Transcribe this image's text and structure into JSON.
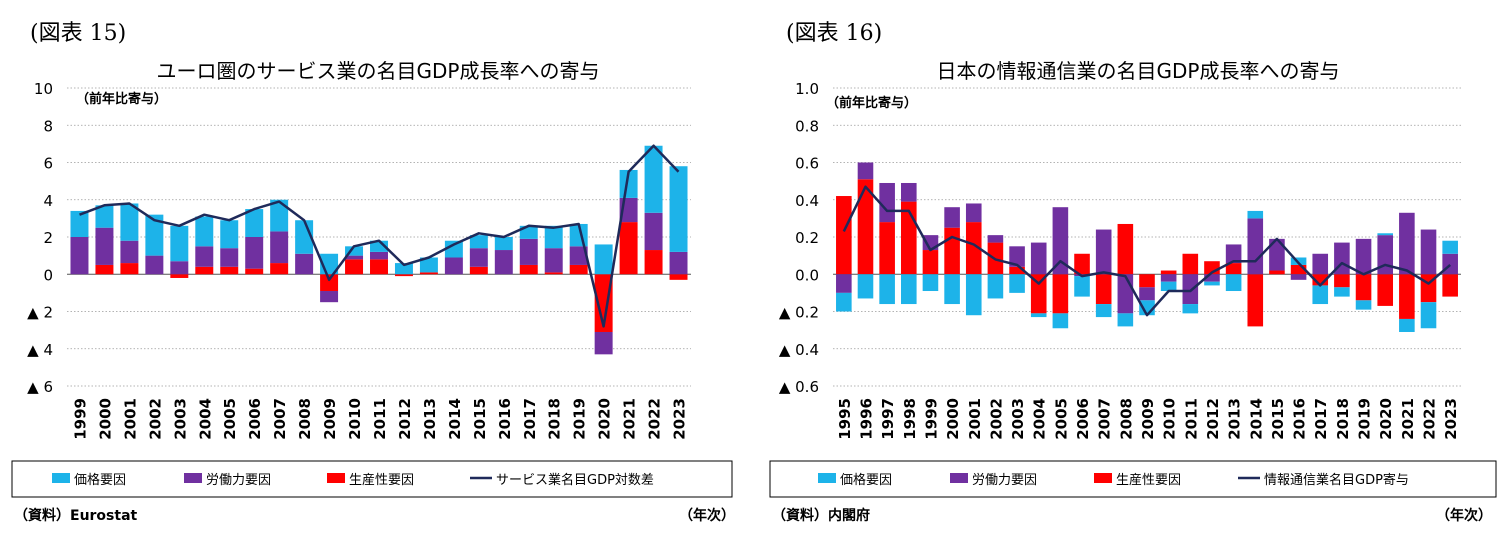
{
  "colors": {
    "price": "#1DB3E9",
    "labor": "#7030A0",
    "productivity": "#FF0000",
    "line": "#1F2A5A",
    "grid": "#9a9a9a"
  },
  "chart_data": [
    {
      "type": "bar",
      "stacked": true,
      "figure_label": "(図表 15)",
      "title": "ユーロ圏のサービス業の名目GDP成長率への寄与",
      "unit_label": "（前年比寄与）",
      "ylim": [
        -6,
        10
      ],
      "y_ticks": [
        10,
        8,
        6,
        4,
        2,
        0,
        -2,
        -4,
        -6
      ],
      "y_tick_labels": [
        "10",
        "8",
        "6",
        "4",
        "2",
        "0",
        "▲ 2",
        "▲ 4",
        "▲ 6"
      ],
      "categories": [
        "1999",
        "2000",
        "2001",
        "2002",
        "2003",
        "2004",
        "2005",
        "2006",
        "2007",
        "2008",
        "2009",
        "2010",
        "2011",
        "2012",
        "2013",
        "2014",
        "2015",
        "2016",
        "2017",
        "2018",
        "2019",
        "2020",
        "2021",
        "2022",
        "2023"
      ],
      "series": [
        {
          "name": "生産性要因",
          "values": [
            0.0,
            0.5,
            0.6,
            0.0,
            -0.2,
            0.4,
            0.4,
            0.3,
            0.6,
            0.0,
            -0.9,
            0.8,
            0.8,
            -0.1,
            0.1,
            0.0,
            0.4,
            0.0,
            0.5,
            0.1,
            0.5,
            -3.1,
            2.8,
            1.3,
            -0.3
          ]
        },
        {
          "name": "労働力要因",
          "values": [
            2.0,
            2.0,
            1.2,
            1.0,
            0.7,
            1.1,
            1.0,
            1.7,
            1.7,
            1.1,
            -0.6,
            0.2,
            0.4,
            0.0,
            0.0,
            0.9,
            1.0,
            1.3,
            1.4,
            1.3,
            1.0,
            -1.2,
            1.3,
            2.0,
            1.2
          ]
        },
        {
          "name": "価格要因",
          "values": [
            1.4,
            1.2,
            2.0,
            2.2,
            1.9,
            1.6,
            1.5,
            1.5,
            1.7,
            1.8,
            1.1,
            0.5,
            0.6,
            0.6,
            0.8,
            0.9,
            0.7,
            0.7,
            0.7,
            1.2,
            1.2,
            1.6,
            1.5,
            3.6,
            4.6
          ]
        }
      ],
      "line": {
        "name": "サービス業名目GDP対数差",
        "values": [
          3.2,
          3.7,
          3.8,
          2.9,
          2.6,
          3.2,
          2.9,
          3.5,
          3.9,
          2.9,
          -0.3,
          1.5,
          1.8,
          0.5,
          0.9,
          1.6,
          2.2,
          2.0,
          2.6,
          2.5,
          2.7,
          -2.8,
          5.5,
          6.9,
          5.5
        ]
      },
      "legend": [
        "価格要因",
        "労働力要因",
        "生産性要因",
        "サービス業名目GDP対数差"
      ],
      "source": "（資料）Eurostat",
      "x_unit": "（年次）"
    },
    {
      "type": "bar",
      "stacked": true,
      "figure_label": "(図表 16)",
      "title": "日本の情報通信業の名目GDP成長率への寄与",
      "unit_label": "（前年比寄与）",
      "ylim": [
        -0.6,
        1.0
      ],
      "y_ticks": [
        1.0,
        0.8,
        0.6,
        0.4,
        0.2,
        0.0,
        -0.2,
        -0.4,
        -0.6
      ],
      "y_tick_labels": [
        "1.0",
        "0.8",
        "0.6",
        "0.4",
        "0.2",
        "0.0",
        "▲ 0.2",
        "▲ 0.4",
        "▲ 0.6"
      ],
      "categories": [
        "1995",
        "1996",
        "1997",
        "1998",
        "1999",
        "2000",
        "2001",
        "2002",
        "2003",
        "2004",
        "2005",
        "2006",
        "2007",
        "2008",
        "2009",
        "2010",
        "2011",
        "2012",
        "2013",
        "2014",
        "2015",
        "2016",
        "2017",
        "2018",
        "2019",
        "2020",
        "2021",
        "2022",
        "2023"
      ],
      "series": [
        {
          "name": "生産性要因",
          "values": [
            0.42,
            0.51,
            0.28,
            0.39,
            0.13,
            0.25,
            0.28,
            0.17,
            0.04,
            -0.21,
            -0.21,
            0.11,
            -0.16,
            0.27,
            -0.07,
            0.02,
            0.11,
            0.07,
            0.06,
            -0.28,
            0.02,
            0.05,
            -0.06,
            -0.07,
            -0.14,
            -0.17,
            -0.24,
            -0.15,
            -0.12
          ]
        },
        {
          "name": "労働力要因",
          "values": [
            -0.1,
            0.09,
            0.21,
            0.1,
            0.08,
            0.11,
            0.1,
            0.04,
            0.11,
            0.17,
            0.36,
            -0.01,
            0.24,
            -0.21,
            -0.07,
            -0.04,
            -0.16,
            -0.04,
            0.1,
            0.3,
            0.17,
            -0.03,
            0.11,
            0.17,
            0.19,
            0.21,
            0.33,
            0.24,
            0.11
          ]
        },
        {
          "name": "価格要因",
          "values": [
            -0.1,
            -0.13,
            -0.16,
            -0.16,
            -0.09,
            -0.16,
            -0.22,
            -0.13,
            -0.1,
            -0.02,
            -0.08,
            -0.11,
            -0.07,
            -0.07,
            -0.08,
            -0.05,
            -0.05,
            -0.02,
            -0.09,
            0.04,
            0.0,
            0.04,
            -0.1,
            -0.05,
            -0.05,
            0.01,
            -0.07,
            -0.14,
            0.07
          ]
        }
      ],
      "line": {
        "name": "情報通信業名目GDP寄与",
        "values": [
          0.23,
          0.47,
          0.34,
          0.34,
          0.13,
          0.2,
          0.16,
          0.08,
          0.05,
          -0.05,
          0.07,
          -0.01,
          0.01,
          -0.01,
          -0.22,
          -0.09,
          -0.09,
          0.01,
          0.07,
          0.07,
          0.19,
          0.06,
          -0.06,
          0.06,
          0.0,
          0.05,
          0.02,
          -0.05,
          0.05
        ]
      },
      "legend": [
        "価格要因",
        "労働力要因",
        "生産性要因",
        "情報通信業名目GDP寄与"
      ],
      "source": "（資料）内閣府",
      "x_unit": "（年次）"
    }
  ]
}
